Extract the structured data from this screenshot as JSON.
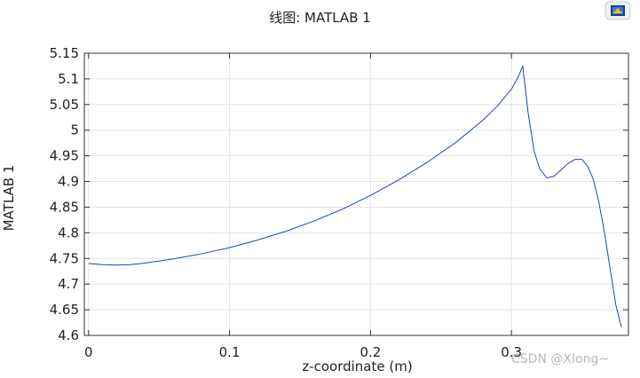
{
  "chart_data": {
    "type": "line",
    "title": "线图: MATLAB 1",
    "xlabel": "z-coordinate (m)",
    "ylabel": "MATLAB 1",
    "xlim": [
      -0.003,
      0.383
    ],
    "ylim": [
      4.6,
      5.15
    ],
    "xticks": [
      0,
      0.1,
      0.2,
      0.3
    ],
    "xtick_labels": [
      "0",
      "0.1",
      "0.2",
      "0.3"
    ],
    "yticks": [
      4.6,
      4.65,
      4.7,
      4.75,
      4.8,
      4.85,
      4.9,
      4.95,
      5,
      5.05,
      5.1,
      5.15
    ],
    "ytick_labels": [
      "4.6",
      "4.65",
      "4.7",
      "4.75",
      "4.8",
      "4.85",
      "4.9",
      "4.95",
      "5",
      "5.05",
      "5.1",
      "5.15"
    ],
    "grid": true,
    "series": [
      {
        "color": "#1f3fd6",
        "x": [
          0,
          0.01,
          0.02,
          0.03,
          0.04,
          0.05,
          0.06,
          0.08,
          0.1,
          0.12,
          0.14,
          0.16,
          0.18,
          0.2,
          0.22,
          0.24,
          0.26,
          0.28,
          0.29,
          0.3,
          0.305,
          0.308,
          0.312,
          0.316,
          0.32,
          0.325,
          0.33,
          0.335,
          0.34,
          0.345,
          0.35,
          0.354,
          0.358,
          0.362,
          0.366,
          0.37,
          0.374,
          0.378
        ],
        "y": [
          4.74,
          4.738,
          4.737,
          4.738,
          4.741,
          4.745,
          4.749,
          4.759,
          4.771,
          4.786,
          4.803,
          4.823,
          4.846,
          4.873,
          4.903,
          4.937,
          4.975,
          5.02,
          5.047,
          5.08,
          5.105,
          5.125,
          5.03,
          4.96,
          4.925,
          4.907,
          4.91,
          4.922,
          4.935,
          4.943,
          4.943,
          4.93,
          4.905,
          4.86,
          4.8,
          4.73,
          4.66,
          4.616
        ]
      }
    ]
  },
  "labels": {
    "watermark": "CSDN @XIong~",
    "logo_icon": "comsol-logo-icon"
  }
}
